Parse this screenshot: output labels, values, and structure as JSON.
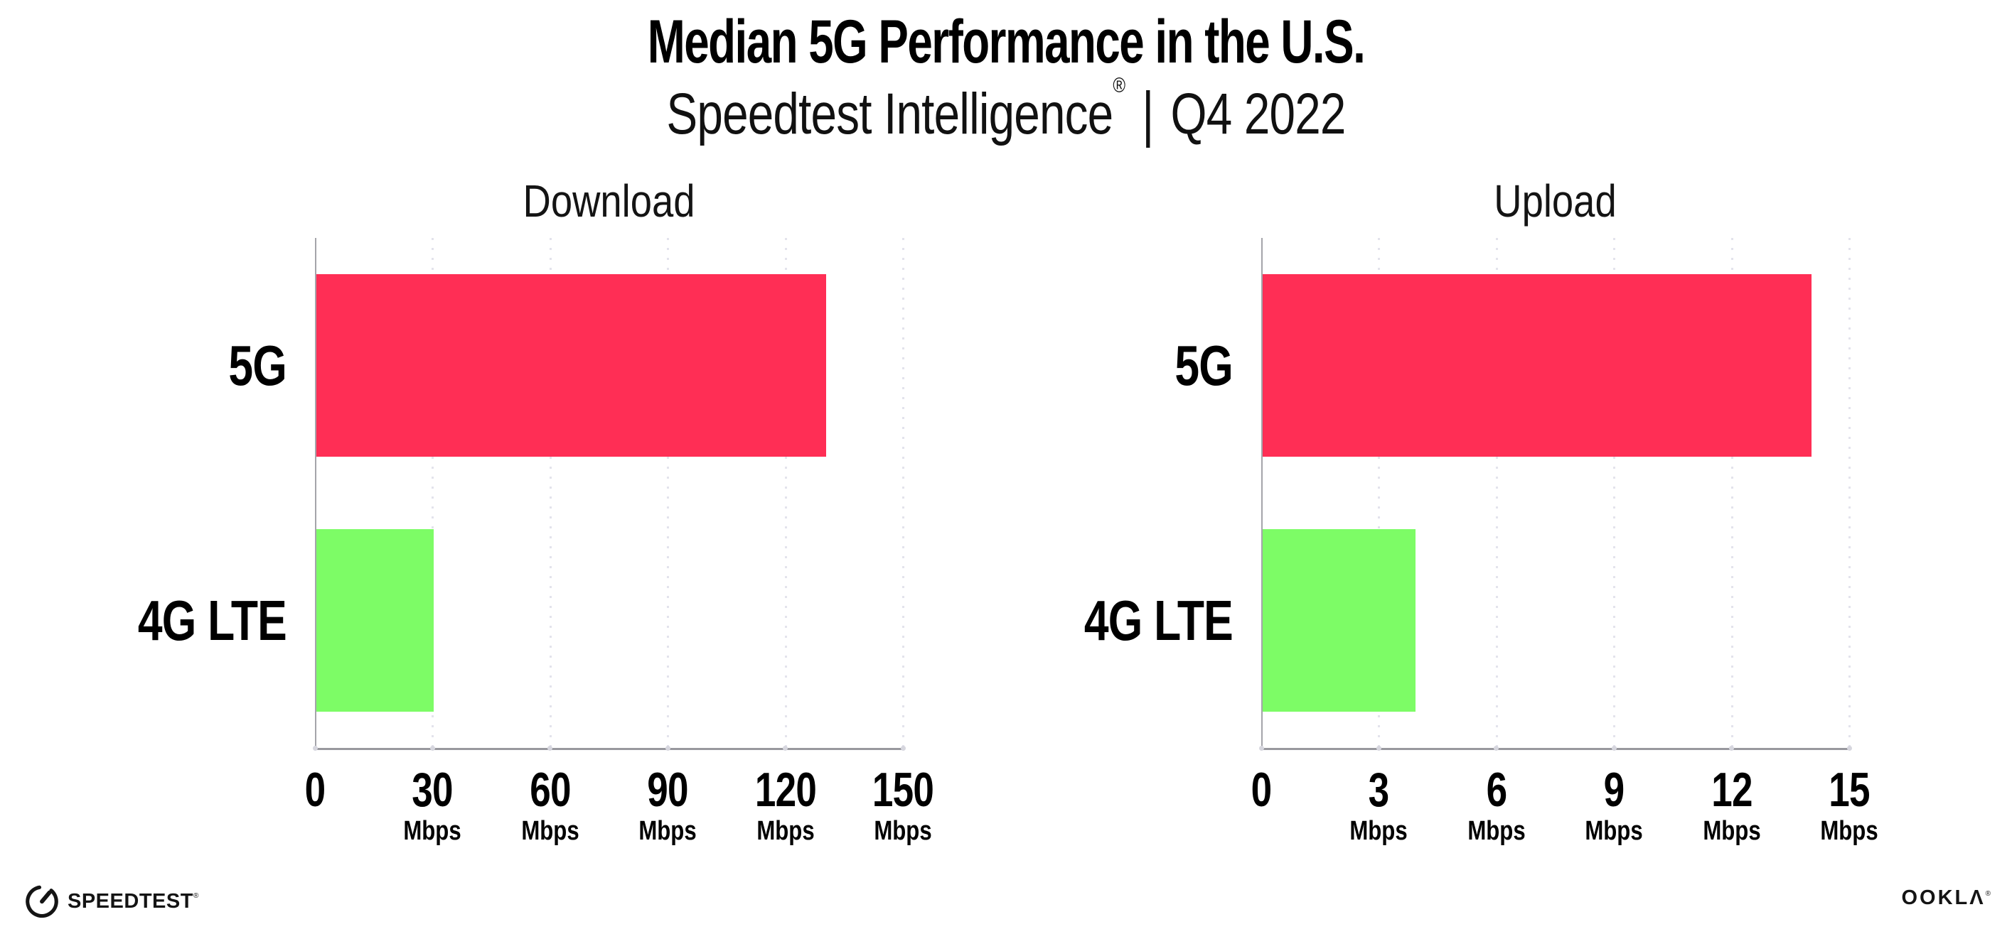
{
  "header": {
    "title": "Median 5G Performance in the U.S.",
    "subtitle_brand": "Speedtest Intelligence",
    "subtitle_reg": "®",
    "subtitle_sep": "|",
    "subtitle_period": "Q4 2022"
  },
  "colors": {
    "bar_5g": "#FF2E55",
    "bar_4g_lte": "#7DFC66",
    "axis": "#98989E",
    "spine": "#A4A4AA",
    "gridline": "#E3E3EC",
    "text": "#000000"
  },
  "chart_data": [
    {
      "type": "bar",
      "orientation": "horizontal",
      "title": "Download",
      "categories": [
        "5G",
        "4G LTE"
      ],
      "values": [
        130,
        30
      ],
      "unit": "Mbps",
      "xlim": [
        0,
        150
      ],
      "xticks": [
        0,
        30,
        60,
        90,
        120,
        150
      ],
      "grid": "dotted-vertical",
      "legend": "none",
      "bar_colors": [
        "#FF2E55",
        "#7DFC66"
      ]
    },
    {
      "type": "bar",
      "orientation": "horizontal",
      "title": "Upload",
      "categories": [
        "5G",
        "4G LTE"
      ],
      "values": [
        14,
        3.9
      ],
      "unit": "Mbps",
      "xlim": [
        0,
        15
      ],
      "xticks": [
        0,
        3,
        6,
        9,
        12,
        15
      ],
      "grid": "dotted-vertical",
      "legend": "none",
      "bar_colors": [
        "#FF2E55",
        "#7DFC66"
      ]
    }
  ],
  "footer": {
    "speedtest_logo_text": "SPEEDTEST",
    "speedtest_logo_mark": "®",
    "ookla_logo_text": "OOKLΛ",
    "ookla_logo_mark": "®"
  }
}
